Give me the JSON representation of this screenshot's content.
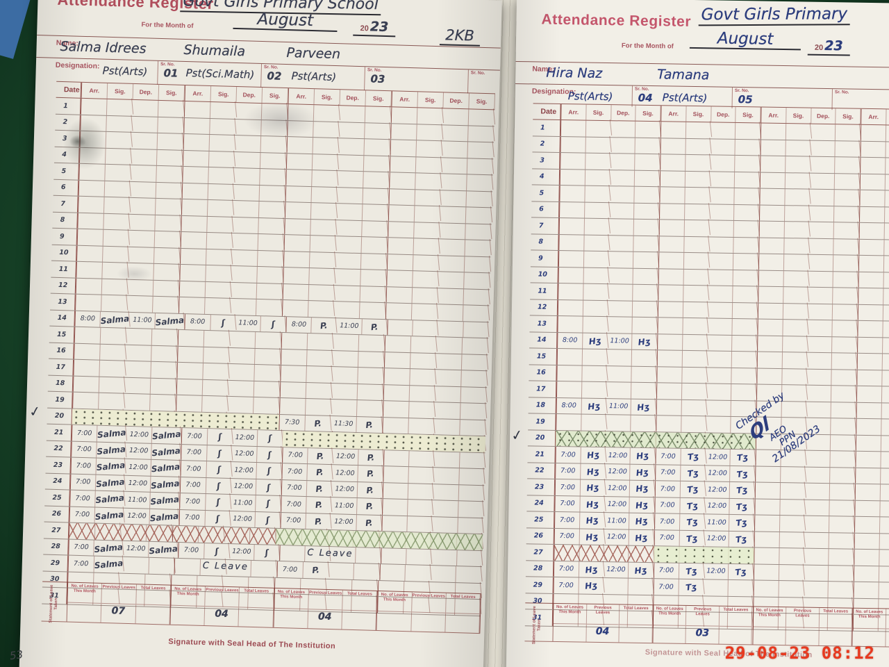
{
  "photo": {
    "timestamp": "29-08-23  08:12",
    "page_number": "53"
  },
  "colors": {
    "printed_red": "#b0505c",
    "ink_left": "#3a3f52",
    "ink_right": "#2c3d7d",
    "timestamp_red": "#e8391f",
    "background_green": "#1b4b2c"
  },
  "register": {
    "pages": [
      {
        "title": "Attendance Register",
        "school": "Govt Girls Primary School",
        "class_note": "2KB",
        "month_label": "For the Month of",
        "month": "August",
        "year_printed": "20",
        "year_written": "23",
        "name_label": "Name:",
        "designation_label": "Designation:",
        "sr_no_label": "Sr. No.",
        "date_label": "Date",
        "col_labels": [
          "Arr.",
          "Sig.",
          "Dep.",
          "Sig."
        ],
        "teachers": [
          {
            "name": "Salma Idrees",
            "designation": "Pst(Arts)",
            "sr_no": "01"
          },
          {
            "name": "Shumaila",
            "designation": "Pst(Sci.Math)",
            "sr_no": "02"
          },
          {
            "name": "Parveen",
            "designation": "Pst(Arts)",
            "sr_no": "03"
          },
          {
            "name": "",
            "designation": "",
            "sr_no": ""
          }
        ],
        "days": 31,
        "entries": {
          "14": [
            "8:00",
            "Salma",
            "11:00",
            "Salma",
            "8:00",
            "ʃ",
            "11:00",
            "ʃ",
            "8:00",
            "P.",
            "11:00",
            "P.",
            "",
            "",
            "",
            ""
          ],
          "20": [
            "",
            "",
            "",
            "",
            "",
            "",
            "",
            "",
            "7:30",
            "P.",
            "11:30",
            "P.",
            "",
            "",
            "",
            ""
          ],
          "21": [
            "7:00",
            "Salma",
            "12:00",
            "Salma",
            "7:00",
            "ʃ",
            "12:00",
            "ʃ",
            "",
            "",
            "",
            "",
            "",
            "",
            "",
            ""
          ],
          "22": [
            "7:00",
            "Salma",
            "12:00",
            "Salma",
            "7:00",
            "ʃ",
            "12:00",
            "ʃ",
            "7:00",
            "P.",
            "12:00",
            "P.",
            "",
            "",
            "",
            ""
          ],
          "23": [
            "7:00",
            "Salma",
            "12:00",
            "Salma",
            "7:00",
            "ʃ",
            "12:00",
            "ʃ",
            "7:00",
            "P.",
            "12:00",
            "P.",
            "",
            "",
            "",
            ""
          ],
          "24": [
            "7:00",
            "Salma",
            "12:00",
            "Salma",
            "7:00",
            "ʃ",
            "12:00",
            "ʃ",
            "7:00",
            "P.",
            "12:00",
            "P.",
            "",
            "",
            "",
            ""
          ],
          "25": [
            "7:00",
            "Salma",
            "11:00",
            "Salma",
            "7:00",
            "ʃ",
            "11:00",
            "ʃ",
            "7:00",
            "P.",
            "11:00",
            "P.",
            "",
            "",
            "",
            ""
          ],
          "26": [
            "7:00",
            "Salma",
            "12:00",
            "Salma",
            "7:00",
            "ʃ",
            "12:00",
            "ʃ",
            "7:00",
            "P.",
            "12:00",
            "P.",
            "",
            "",
            "",
            ""
          ],
          "28": [
            "7:00",
            "Salma",
            "12:00",
            "Salma",
            "7:00",
            "ʃ",
            "12:00",
            "ʃ",
            "",
            "",
            "",
            "",
            "",
            "",
            "",
            ""
          ],
          "29": [
            "7:00",
            "Salma",
            "",
            "",
            "",
            "",
            "",
            "",
            "7:00",
            "P.",
            "",
            "",
            "",
            "",
            "",
            ""
          ]
        },
        "patterns": [
          {
            "row": 20,
            "from": 0,
            "to": 8,
            "type": "dots"
          },
          {
            "row": 21,
            "from": 8,
            "to": 16,
            "type": "dots"
          },
          {
            "row": 27,
            "from": 0,
            "to": 8,
            "type": "xr"
          },
          {
            "row": 27,
            "from": 8,
            "to": 16,
            "type": "xg"
          }
        ],
        "notes": [
          {
            "row": 28,
            "from": 8,
            "to": 12,
            "text": "C Leave"
          },
          {
            "row": 29,
            "from": 4,
            "to": 8,
            "text": "C Leave"
          }
        ],
        "tick_mark": "✓",
        "summary_side_label": "Statement of Leave Taken",
        "summary_labels": [
          "No. of Leaves This Month",
          "Previous Leaves",
          "Total Leaves"
        ],
        "summary_values": [
          [
            "",
            "07",
            ""
          ],
          [
            "",
            "04",
            ""
          ],
          [
            "",
            "04",
            ""
          ],
          [
            "",
            "",
            ""
          ]
        ],
        "footer": "Signature with Seal Head of The Institution"
      },
      {
        "title": "Attendance Register",
        "school": "Govt Girls Primary",
        "class_note": "",
        "month_label": "For the Month of",
        "month": "August",
        "year_printed": "20",
        "year_written": "23",
        "name_label": "Name:",
        "designation_label": "Designation:",
        "sr_no_label": "Sr. No.",
        "date_label": "Date",
        "col_labels": [
          "Arr.",
          "Sig.",
          "Dep.",
          "Sig."
        ],
        "teachers": [
          {
            "name": "Hira Naz",
            "designation": "Pst(Arts)",
            "sr_no": "04"
          },
          {
            "name": "Tamana",
            "designation": "Pst(Arts)",
            "sr_no": "05"
          },
          {
            "name": "",
            "designation": "",
            "sr_no": ""
          },
          {
            "name": "",
            "designation": "",
            "sr_no": ""
          }
        ],
        "days": 31,
        "entries": {
          "14": [
            "8:00",
            "Hʒ",
            "11:00",
            "Hʒ",
            "",
            "",
            "",
            "",
            "",
            "",
            "",
            "",
            "",
            "",
            "",
            ""
          ],
          "18": [
            "8:00",
            "Hʒ",
            "11:00",
            "Hʒ",
            "",
            "",
            "",
            "",
            "",
            "",
            "",
            "",
            "",
            "",
            "",
            ""
          ],
          "21": [
            "7:00",
            "Hʒ",
            "12:00",
            "Hʒ",
            "7:00",
            "Tʒ",
            "12:00",
            "Tʒ",
            "",
            "",
            "",
            "",
            "",
            "",
            "",
            ""
          ],
          "22": [
            "7:00",
            "Hʒ",
            "12:00",
            "Hʒ",
            "7:00",
            "Tʒ",
            "12:00",
            "Tʒ",
            "",
            "",
            "",
            "",
            "",
            "",
            "",
            ""
          ],
          "23": [
            "7:00",
            "Hʒ",
            "12:00",
            "Hʒ",
            "7:00",
            "Tʒ",
            "12:00",
            "Tʒ",
            "",
            "",
            "",
            "",
            "",
            "",
            "",
            ""
          ],
          "24": [
            "7:00",
            "Hʒ",
            "12:00",
            "Hʒ",
            "7:00",
            "Tʒ",
            "12:00",
            "Tʒ",
            "",
            "",
            "",
            "",
            "",
            "",
            "",
            ""
          ],
          "25": [
            "7:00",
            "Hʒ",
            "11:00",
            "Hʒ",
            "7:00",
            "Tʒ",
            "11:00",
            "Tʒ",
            "",
            "",
            "",
            "",
            "",
            "",
            "",
            ""
          ],
          "26": [
            "7:00",
            "Hʒ",
            "12:00",
            "Hʒ",
            "7:00",
            "Tʒ",
            "12:00",
            "Tʒ",
            "",
            "",
            "",
            "",
            "",
            "",
            "",
            ""
          ],
          "28": [
            "7:00",
            "Hʒ",
            "12:00",
            "Hʒ",
            "7:00",
            "Tʒ",
            "12:00",
            "Tʒ",
            "",
            "",
            "",
            "",
            "",
            "",
            "",
            ""
          ],
          "29": [
            "7:00",
            "Hʒ",
            "",
            "",
            "7:00",
            "Tʒ",
            "",
            "",
            "",
            "",
            "",
            "",
            "",
            "",
            "",
            ""
          ]
        },
        "patterns": [
          {
            "row": 20,
            "from": 0,
            "to": 8,
            "type": "xd"
          },
          {
            "row": 27,
            "from": 0,
            "to": 4,
            "type": "xr"
          },
          {
            "row": 27,
            "from": 4,
            "to": 8,
            "type": "dg"
          }
        ],
        "notes": [],
        "tick_mark": "✓",
        "checked_by": {
          "prefix": "Checked by",
          "signature": "Ql",
          "org1": "AEO",
          "org2": "PPN",
          "date": "21/08/2023"
        },
        "summary_side_label": "Statement of Leave Taken",
        "summary_labels": [
          "No. of Leaves This Month",
          "Previous Leaves",
          "Total Leaves"
        ],
        "summary_values": [
          [
            "",
            "04",
            ""
          ],
          [
            "",
            "03",
            ""
          ],
          [
            "",
            "",
            ""
          ],
          [
            "",
            "",
            ""
          ]
        ],
        "footer": "Signature with Seal Head of The Institution"
      }
    ]
  }
}
